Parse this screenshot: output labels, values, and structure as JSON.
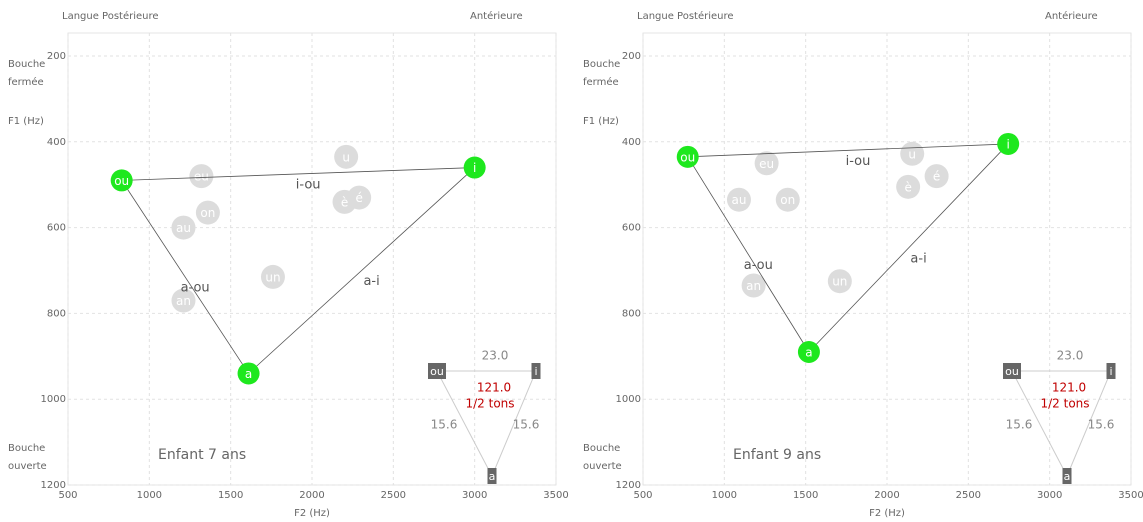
{
  "chart_data": [
    {
      "type": "scatter",
      "top_left": "Langue Postérieure",
      "top_right": "Antérieure",
      "y_top_note": [
        "Bouche",
        "fermée"
      ],
      "y_label": "F1 (Hz)",
      "y_bottom_note": [
        "Bouche",
        "ouverte"
      ],
      "x_label": "F2 (Hz)",
      "annotation": "Enfant 7 ans",
      "xlim": [
        500,
        3500
      ],
      "xticks": [
        500,
        1000,
        1500,
        2000,
        2500,
        3000,
        3500
      ],
      "ylim": [
        200,
        1200
      ],
      "yticks": [
        200,
        400,
        600,
        800,
        1000,
        1200
      ],
      "y_inverted": true,
      "grid": true,
      "points": {
        "color": "#1ee81e",
        "labels": [
          "ou",
          "i",
          "a"
        ],
        "x": [
          830,
          3000,
          1610
        ],
        "y": [
          490,
          460,
          940
        ]
      },
      "edge_labels": [
        "i-ou",
        "a-i",
        "a-ou"
      ],
      "reference": {
        "color": "#dcdcdc",
        "labels": [
          "eu",
          "on",
          "au",
          "un",
          "an",
          "u",
          "è",
          "é"
        ],
        "x": [
          1320,
          1360,
          1210,
          1760,
          1210,
          2210,
          2200,
          2290
        ],
        "y": [
          480,
          565,
          600,
          715,
          770,
          435,
          540,
          530
        ]
      },
      "inset": {
        "top": "23.0",
        "center": "121.0",
        "unit": "1/2 tons",
        "left": "15.6",
        "right": "15.6"
      }
    },
    {
      "type": "scatter",
      "top_left": "Langue Postérieure",
      "top_right": "Antérieure",
      "y_top_note": [
        "Bouche",
        "fermée"
      ],
      "y_label": "F1 (Hz)",
      "y_bottom_note": [
        "Bouche",
        "ouverte"
      ],
      "x_label": "F2 (Hz)",
      "annotation": "Enfant 9 ans",
      "xlim": [
        500,
        3500
      ],
      "xticks": [
        500,
        1000,
        1500,
        2000,
        2500,
        3000,
        3500
      ],
      "ylim": [
        200,
        1200
      ],
      "yticks": [
        200,
        400,
        600,
        800,
        1000,
        1200
      ],
      "y_inverted": true,
      "grid": true,
      "points": {
        "color": "#1ee81e",
        "labels": [
          "ou",
          "i",
          "a"
        ],
        "x": [
          775,
          2745,
          1520
        ],
        "y": [
          435,
          405,
          890
        ]
      },
      "edge_labels": [
        "i-ou",
        "a-i",
        "a-ou"
      ],
      "reference": {
        "color": "#dcdcdc",
        "labels": [
          "eu",
          "on",
          "au",
          "un",
          "an",
          "u",
          "è",
          "é"
        ],
        "x": [
          1260,
          1390,
          1090,
          1710,
          1180,
          2155,
          2130,
          2305
        ],
        "y": [
          450,
          535,
          535,
          725,
          735,
          428,
          505,
          480
        ]
      },
      "inset": {
        "top": "23.0",
        "center": "121.0",
        "unit": "1/2 tons",
        "left": "15.6",
        "right": "15.6"
      }
    }
  ]
}
